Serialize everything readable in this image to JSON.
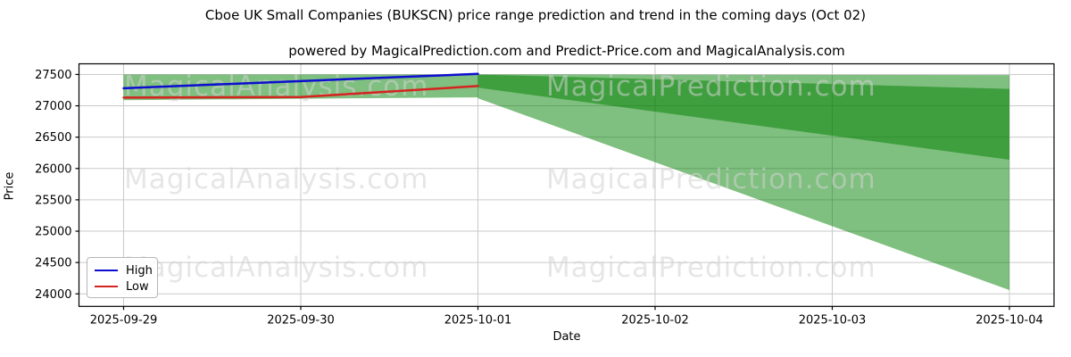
{
  "page": {
    "title": "Cboe UK Small Companies (BUKSCN) price range prediction and trend in the coming days (Oct 02)",
    "subtitle": "powered by MagicalPrediction.com and Predict-Price.com and MagicalAnalysis.com"
  },
  "axes": {
    "y_label": "Price",
    "x_label": "Date"
  },
  "legend": {
    "items": [
      {
        "label": "High",
        "color": "#0d0dd0"
      },
      {
        "label": "Low",
        "color": "#d42420"
      }
    ]
  },
  "watermarks": {
    "col1": "MagicalAnalysis.com",
    "col2": "MagicalPrediction.com"
  },
  "colors": {
    "band_green": "rgba(0,128,0,0.5)",
    "grid": "#c9c9c9",
    "spine": "#000000",
    "watermark": "rgba(210,210,210,0.55)"
  },
  "chart_data": {
    "type": "line",
    "title": "Cboe UK Small Companies (BUKSCN) price range prediction and trend in the coming days (Oct 02)",
    "xlabel": "Date",
    "ylabel": "Price",
    "x": [
      "2025-09-29",
      "2025-09-30",
      "2025-10-01",
      "2025-10-02",
      "2025-10-03",
      "2025-10-04"
    ],
    "y_ticks": [
      27500,
      27000,
      26500,
      26000,
      25500,
      25000,
      24500,
      24000
    ],
    "ylim": [
      23800,
      27670
    ],
    "grid": true,
    "legend_position": "lower left",
    "series": [
      {
        "name": "High",
        "color": "#0d0dd0",
        "x": [
          "2025-09-29",
          "2025-09-30",
          "2025-10-01"
        ],
        "values": [
          27280,
          27395,
          27510
        ]
      },
      {
        "name": "Low",
        "color": "#d42420",
        "x": [
          "2025-09-29",
          "2025-09-30",
          "2025-10-01"
        ],
        "values": [
          27130,
          27140,
          27315
        ]
      }
    ],
    "bands": [
      {
        "name": "history-range",
        "color": "rgba(0,128,0,0.5)",
        "x": [
          "2025-09-29",
          "2025-10-01"
        ],
        "top": [
          27500,
          27500
        ],
        "bottom": [
          27090,
          27135
        ]
      },
      {
        "name": "forecast-outer-range",
        "color": "rgba(0,128,0,0.5)",
        "x": [
          "2025-10-01",
          "2025-10-04"
        ],
        "top": [
          27500,
          27490
        ],
        "bottom": [
          27120,
          24060
        ]
      },
      {
        "name": "forecast-inner-range",
        "color": "rgba(0,128,0,0.5)",
        "x": [
          "2025-10-01",
          "2025-10-04"
        ],
        "top": [
          27500,
          27270
        ],
        "bottom": [
          27290,
          26140
        ]
      }
    ]
  }
}
